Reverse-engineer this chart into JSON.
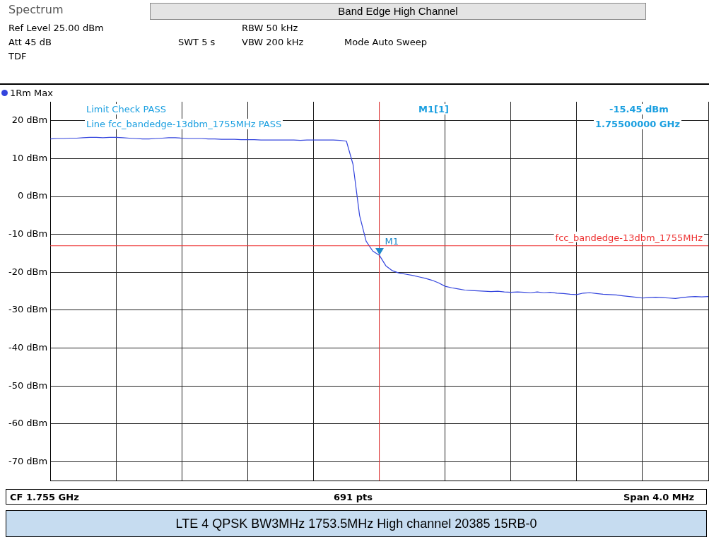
{
  "chart_data": {
    "type": "line",
    "title": "Band Edge High Channel",
    "annotations": [
      "Spectrum",
      "Ref Level 25.00 dBm",
      "Att 45 dB",
      "TDF",
      "RBW 50 kHz",
      "SWT 5 s",
      "VBW 200 kHz",
      "Mode Auto Sweep",
      "Limit Check PASS",
      "Line fcc_bandedge-13dbm_1755MHz PASS",
      "M1[1]",
      "-15.45 dBm",
      "1.75500000 GHz",
      "CF 1.755 GHz",
      "691 pts",
      "Span 4.0 MHz",
      "M1",
      "LTE 4 QPSK BW3MHz 1753.5MHz High channel 20385 15RB-0"
    ],
    "categories": [
      null,
      null,
      null,
      null,
      null,
      null,
      null,
      null,
      null,
      null,
      null,
      null,
      null,
      null,
      null,
      null,
      null,
      null,
      null,
      null,
      null,
      null,
      null,
      null,
      null,
      null,
      null,
      null,
      null,
      null,
      null,
      null,
      null,
      null,
      null,
      null,
      null,
      null,
      null,
      null,
      null,
      null,
      null,
      null,
      null,
      null,
      null,
      null,
      null,
      null,
      null,
      null,
      null,
      null,
      null,
      null,
      null,
      null,
      null,
      null,
      null,
      null,
      null,
      null,
      null,
      null,
      null,
      null,
      null,
      null,
      null,
      null,
      null,
      null,
      null,
      null,
      null,
      null,
      null,
      null,
      null,
      null,
      null,
      null,
      null,
      null,
      null,
      null,
      null,
      null,
      null,
      null,
      null,
      null,
      null,
      null,
      null,
      null,
      null,
      null,
      null
    ],
    "ylim": [
      -75,
      25
    ],
    "yticks": [
      {
        "value": -70,
        "label": "-70 dBm"
      },
      {
        "value": -60,
        "label": "-60 dBm"
      },
      {
        "value": -50,
        "label": "-50 dBm"
      },
      {
        "value": -40,
        "label": "-40 dBm"
      },
      {
        "value": -30,
        "label": "-30 dBm"
      },
      {
        "value": -20,
        "label": "-20 dBm"
      },
      {
        "value": -10,
        "label": "-10 dBm"
      },
      {
        "value": 0,
        "label": "0 dBm"
      },
      {
        "value": 10,
        "label": "10 dBm"
      },
      {
        "value": 20,
        "label": "20 dBm"
      }
    ],
    "tick_labels": "y",
    "grid": true,
    "legend": "top left",
    "marker": "none",
    "line_style": "solid",
    "series": [
      {
        "name": "1Rm Max",
        "color": "#3344dd",
        "values": [
          15.2,
          15.3,
          15.3,
          15.4,
          15.4,
          15.5,
          15.6,
          15.6,
          15.5,
          15.6,
          15.6,
          15.5,
          15.4,
          15.3,
          15.2,
          15.2,
          15.3,
          15.4,
          15.5,
          15.5,
          15.4,
          15.3,
          15.3,
          15.3,
          15.2,
          15.2,
          15.1,
          15.1,
          15.1,
          15.0,
          15.0,
          15.0,
          14.9,
          14.9,
          14.9,
          14.9,
          14.9,
          14.9,
          14.8,
          14.9,
          14.9,
          14.9,
          14.9,
          14.9,
          14.8,
          14.6,
          8.5,
          -5.0,
          -11.8,
          -14.4,
          -15.5,
          -18.3,
          -19.6,
          -20.2,
          -20.5,
          -20.8,
          -21.2,
          -21.6,
          -22.1,
          -22.8,
          -23.7,
          -24.1,
          -24.4,
          -24.7,
          -24.8,
          -24.9,
          -25.0,
          -25.1,
          -25.0,
          -25.2,
          -25.3,
          -25.2,
          -25.3,
          -25.4,
          -25.2,
          -25.4,
          -25.3,
          -25.5,
          -25.6,
          -25.8,
          -25.9,
          -25.5,
          -25.4,
          -25.6,
          -25.8,
          -25.9,
          -26.0,
          -26.2,
          -26.4,
          -26.6,
          -26.8,
          -26.7,
          -26.6,
          -26.7,
          -26.8,
          -26.9,
          -26.7,
          -26.5,
          -26.4,
          -26.5,
          -26.4
        ]
      }
    ],
    "ref_lines": [
      {
        "axis": "y",
        "value": -13,
        "label": "fcc_bandedge-13dbm_1755MHz",
        "color": "#ee3333"
      }
    ]
  }
}
